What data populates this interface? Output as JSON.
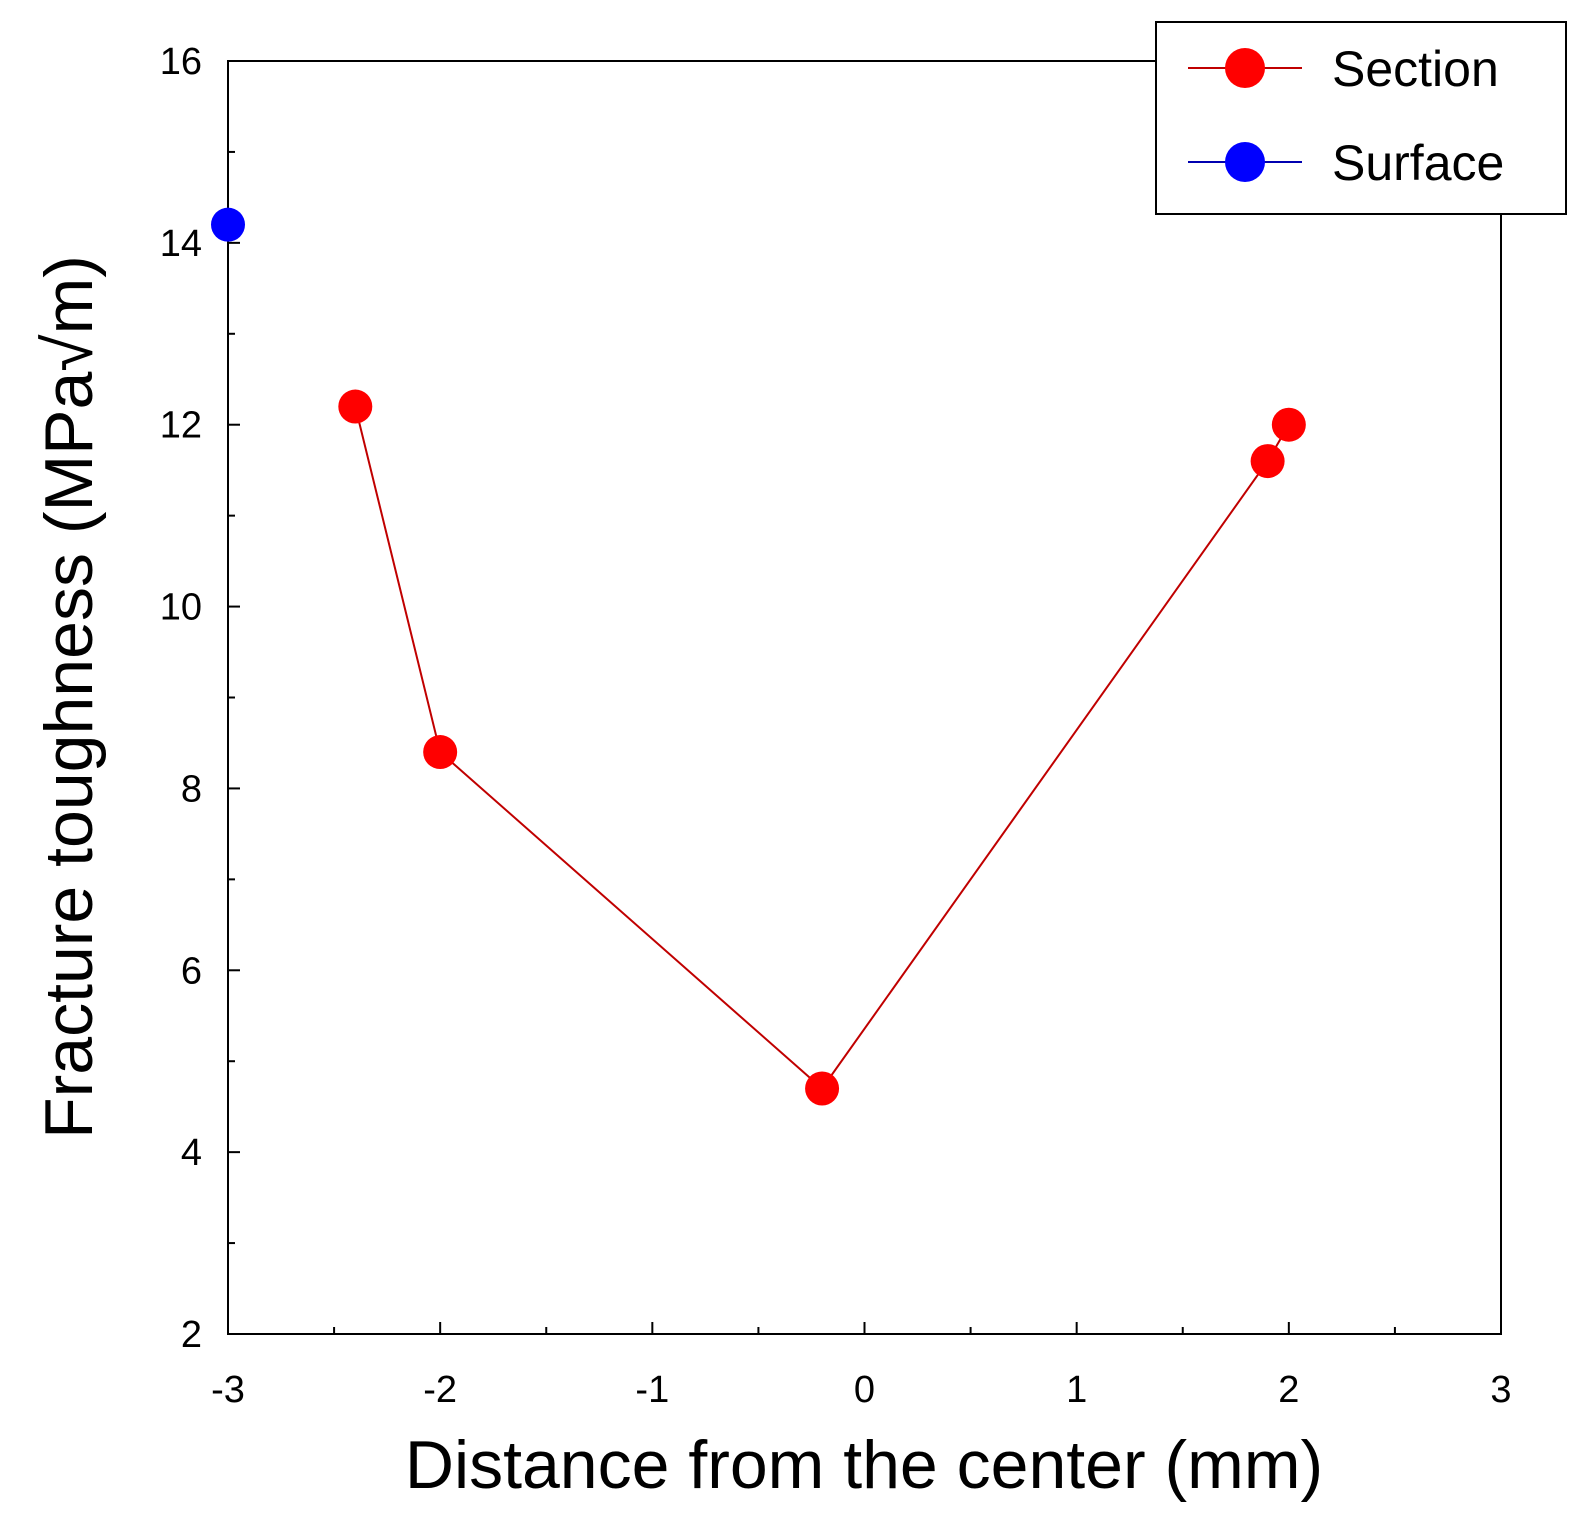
{
  "chart_data": {
    "type": "scatter",
    "xlabel": "Distance from the center (mm)",
    "ylabel": "Fracture toughness  (MPa√m)",
    "xlim": [
      -3,
      3
    ],
    "ylim": [
      2,
      16
    ],
    "x_ticks": [
      "-3",
      "-2",
      "-1",
      "0",
      "1",
      "2",
      "3"
    ],
    "y_ticks": [
      "2",
      "4",
      "6",
      "8",
      "10",
      "12",
      "14",
      "16"
    ],
    "grid": false,
    "legend_position": "top-right",
    "series": [
      {
        "name": "Section",
        "color": "#ff0000",
        "line_color": "#c00000",
        "connected": true,
        "x": [
          -2.4,
          -2.0,
          -0.2,
          1.9,
          2.0
        ],
        "y": [
          12.2,
          8.4,
          4.7,
          11.6,
          12.0
        ]
      },
      {
        "name": "Surface",
        "color": "#0000ff",
        "line_color": "#0000b0",
        "connected": false,
        "x": [
          -3.0
        ],
        "y": [
          14.2
        ]
      }
    ]
  }
}
